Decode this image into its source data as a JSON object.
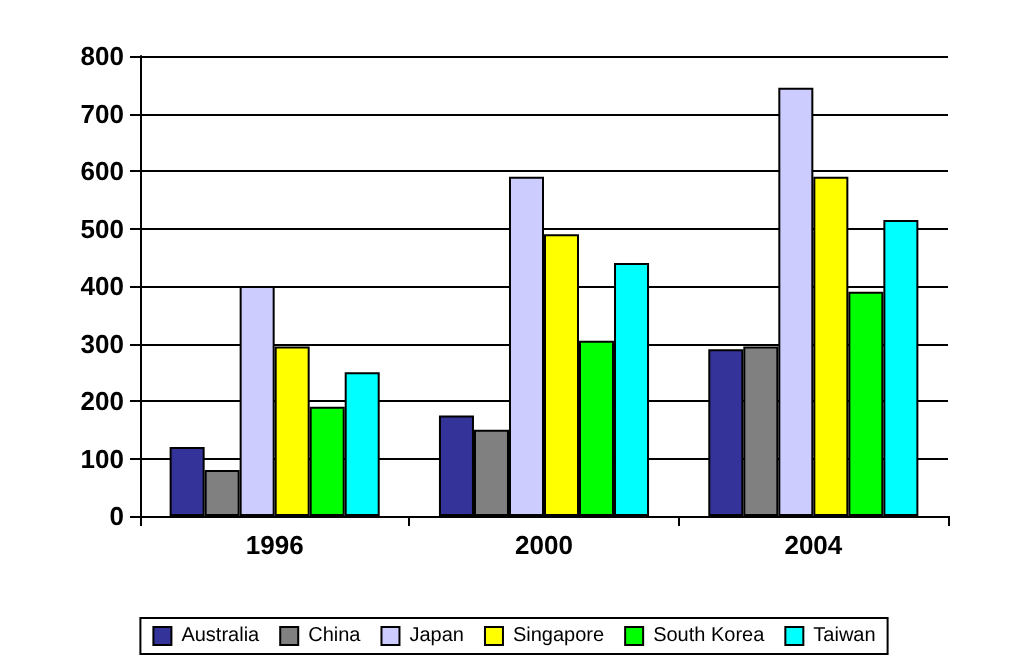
{
  "chart_data": {
    "type": "bar",
    "categories": [
      "1996",
      "2000",
      "2004"
    ],
    "series": [
      {
        "name": "Australia",
        "color": "#333399",
        "values": [
          120,
          175,
          290
        ]
      },
      {
        "name": "China",
        "color": "#808080",
        "values": [
          80,
          150,
          295
        ]
      },
      {
        "name": "Japan",
        "color": "#ccccff",
        "values": [
          400,
          590,
          745
        ]
      },
      {
        "name": "Singapore",
        "color": "#ffff00",
        "values": [
          295,
          490,
          590
        ]
      },
      {
        "name": "South Korea",
        "color": "#00ff00",
        "values": [
          190,
          305,
          390
        ]
      },
      {
        "name": "Taiwan",
        "color": "#00ffff",
        "values": [
          250,
          440,
          515
        ]
      }
    ],
    "ylim": [
      0,
      800
    ],
    "yticks": [
      0,
      100,
      200,
      300,
      400,
      500,
      600,
      700,
      800
    ],
    "grid": "y",
    "legend": "bottom"
  }
}
